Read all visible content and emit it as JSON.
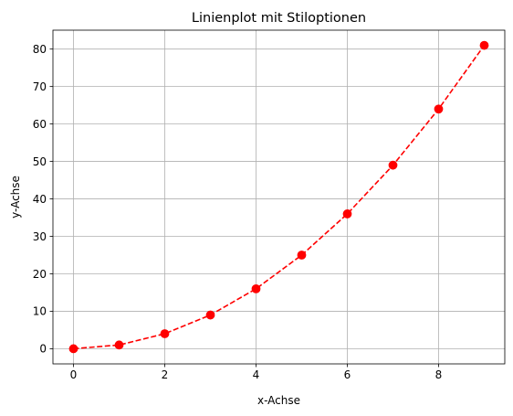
{
  "chart_data": {
    "type": "line",
    "title": "Linienplot mit Stiloptionen",
    "xlabel": "x-Achse",
    "ylabel": "y-Achse",
    "x": [
      0,
      1,
      2,
      3,
      4,
      5,
      6,
      7,
      8,
      9
    ],
    "series": [
      {
        "values": [
          0,
          1,
          4,
          9,
          16,
          25,
          36,
          49,
          64,
          81
        ],
        "color": "#ff0000",
        "line_style": "dashed",
        "marker": "circle"
      }
    ],
    "xlim": [
      -0.45,
      9.45
    ],
    "ylim": [
      -4.05,
      85.05
    ],
    "xticks": [
      0,
      2,
      4,
      6,
      8
    ],
    "yticks": [
      0,
      10,
      20,
      30,
      40,
      50,
      60,
      70,
      80
    ],
    "xtick_labels": [
      "0",
      "2",
      "4",
      "6",
      "8"
    ],
    "ytick_labels": [
      "0",
      "10",
      "20",
      "30",
      "40",
      "50",
      "60",
      "70",
      "80"
    ],
    "grid": true,
    "grid_color": "#b0b0b0"
  }
}
